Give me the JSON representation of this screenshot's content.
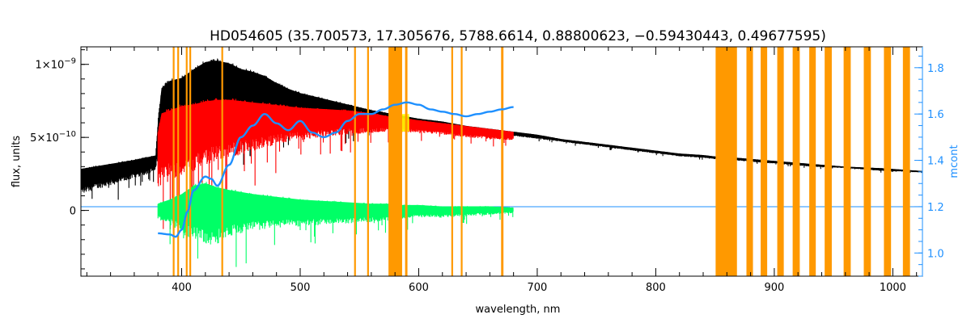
{
  "chart_data": {
    "type": "line",
    "title": "HD054605   (35.700573, 17.305676, 5788.6614, 0.88800623, −0.59430443, 0.49677595)",
    "xlabel": "wavelength, nm",
    "ylabel": "flux, units",
    "y2label": "mcont",
    "xlim": [
      315,
      1025
    ],
    "ylim": [
      -4.5e-10,
      1.12e-09
    ],
    "y2lim": [
      0.9,
      1.89
    ],
    "x_ticks": [
      400,
      500,
      600,
      700,
      800,
      900,
      1000
    ],
    "y_ticks": [
      {
        "value": 0,
        "label": "0"
      },
      {
        "value": 5e-10,
        "label": "5×10",
        "exp": "−10"
      },
      {
        "value": 1e-09,
        "label": "1×10",
        "exp": "−9"
      }
    ],
    "y2_ticks": [
      1.0,
      1.2,
      1.4,
      1.6,
      1.8
    ],
    "grid": false,
    "colors": {
      "observed": "#000000",
      "model": "#ff0000",
      "residual": "#00ff66",
      "mcont": "#1e90ff",
      "mask": "#ff9900",
      "highlight": "#ffff00"
    },
    "masks": [
      {
        "x0": 392.5,
        "x1": 394.0
      },
      {
        "x0": 396.3,
        "x1": 397.8
      },
      {
        "x0": 403.5,
        "x1": 405.0
      },
      {
        "x0": 406.5,
        "x1": 408.0
      },
      {
        "x0": 433.5,
        "x1": 435.0
      },
      {
        "x0": 545.5,
        "x1": 547.0
      },
      {
        "x0": 556.5,
        "x1": 558.0
      },
      {
        "x0": 574.5,
        "x1": 586.0
      },
      {
        "x0": 588.5,
        "x1": 590.5
      },
      {
        "x0": 627.5,
        "x1": 629.0
      },
      {
        "x0": 635.5,
        "x1": 637.0
      },
      {
        "x0": 669.5,
        "x1": 671.5
      },
      {
        "x0": 850.5,
        "x1": 868.5
      },
      {
        "x0": 876.5,
        "x1": 882.0
      },
      {
        "x0": 888.5,
        "x1": 894.0
      },
      {
        "x0": 902.5,
        "x1": 908.0
      },
      {
        "x0": 915.5,
        "x1": 921.5
      },
      {
        "x0": 929.5,
        "x1": 935.0
      },
      {
        "x0": 942.5,
        "x1": 948.5
      },
      {
        "x0": 958.5,
        "x1": 964.5
      },
      {
        "x0": 975.5,
        "x1": 981.5
      },
      {
        "x0": 992.5,
        "x1": 998.5
      },
      {
        "x0": 1008.5,
        "x1": 1014.5
      }
    ],
    "series": [
      {
        "key": "observed",
        "x": [
          315,
          330,
          345,
          360,
          372,
          378,
          380,
          383,
          390,
          400,
          410,
          420,
          430,
          440,
          450,
          460,
          470,
          480,
          490,
          500,
          520,
          540,
          560,
          580,
          600,
          620,
          640,
          660,
          680,
          700,
          720,
          740,
          760,
          780,
          800,
          820,
          840,
          850,
          870,
          900,
          930,
          960,
          990,
          1025
        ],
        "y_upper": [
          2.9e-10,
          3.1e-10,
          3.3e-10,
          3.5e-10,
          3.7e-10,
          3.8e-10,
          6.2e-10,
          8.5e-10,
          9e-10,
          9.2e-10,
          9.8e-10,
          1.03e-09,
          1.04e-09,
          1.02e-09,
          9.8e-10,
          9.6e-10,
          9.3e-10,
          8.8e-10,
          8.4e-10,
          8.1e-10,
          7.7e-10,
          7.3e-10,
          6.9e-10,
          6.6e-10,
          6.3e-10,
          6.1e-10,
          5.8e-10,
          5.6e-10,
          5.4e-10,
          5.2e-10,
          4.9e-10,
          4.7e-10,
          4.5e-10,
          4.3e-10,
          4.1e-10,
          3.9e-10,
          3.8e-10,
          3.7e-10,
          3.6e-10,
          3.4e-10,
          3.2e-10,
          3e-10,
          2.9e-10,
          2.7e-10
        ],
        "y_lower": [
          1.1e-10,
          1.5e-10,
          1.8e-10,
          2.2e-10,
          2.5e-10,
          2.7e-10,
          3.6e-10,
          4.4e-10,
          4.8e-10,
          5e-10,
          5.2e-10,
          5.6e-10,
          5.8e-10,
          5.9e-10,
          6e-10,
          6.1e-10,
          6.2e-10,
          6.2e-10,
          6.1e-10,
          6e-10,
          5.9e-10,
          5.8e-10,
          5.8e-10,
          5.8e-10,
          5.7e-10,
          5.6e-10,
          5.4e-10,
          5.2e-10,
          5.1e-10,
          4.9e-10,
          4.7e-10,
          4.5e-10,
          4.3e-10,
          4.1e-10,
          3.9e-10,
          3.7e-10,
          3.6e-10,
          3.5e-10,
          3.4e-10,
          3.2e-10,
          3e-10,
          2.9e-10,
          2.7e-10,
          2.6e-10
        ]
      },
      {
        "key": "model",
        "x": [
          380,
          383,
          390,
          400,
          410,
          420,
          430,
          440,
          450,
          460,
          470,
          480,
          490,
          500,
          520,
          540,
          560,
          580,
          600,
          620,
          640,
          660,
          680
        ],
        "y_upper": [
          5.5e-10,
          6.8e-10,
          7e-10,
          7.3e-10,
          7.4e-10,
          7.6e-10,
          7.7e-10,
          7.7e-10,
          7.6e-10,
          7.5e-10,
          7.4e-10,
          7.3e-10,
          7.2e-10,
          7.1e-10,
          7e-10,
          6.9e-10,
          6.7e-10,
          6.4e-10,
          6.2e-10,
          6e-10,
          5.8e-10,
          5.6e-10,
          5.4e-10
        ],
        "y_lower": [
          1.5e-10,
          1.7e-10,
          2e-10,
          2.3e-10,
          2.7e-10,
          3.1e-10,
          3.4e-10,
          3.6e-10,
          3.8e-10,
          4e-10,
          4.3e-10,
          4.5e-10,
          4.7e-10,
          4.8e-10,
          5e-10,
          5.2e-10,
          5.3e-10,
          5.4e-10,
          5.3e-10,
          5.2e-10,
          5e-10,
          4.9e-10,
          4.8e-10
        ]
      },
      {
        "key": "residual",
        "x": [
          380,
          390,
          400,
          410,
          420,
          430,
          440,
          460,
          480,
          500,
          520,
          540,
          560,
          575,
          585,
          600,
          620,
          640,
          660,
          680
        ],
        "y_upper": [
          5e-11,
          8e-11,
          1.2e-10,
          1.8e-10,
          2e-10,
          1.7e-10,
          1.5e-10,
          1.2e-10,
          1e-10,
          8e-11,
          7e-11,
          6e-11,
          5e-11,
          5e-11,
          4e-11,
          4e-11,
          3e-11,
          3e-11,
          3e-11,
          2e-11
        ],
        "y_lower": [
          -6e-11,
          -1e-10,
          -1.6e-10,
          -2e-10,
          -2.5e-10,
          -2.3e-10,
          -1.8e-10,
          -1.4e-10,
          -1.2e-10,
          -1.1e-10,
          -1e-10,
          -9e-11,
          -8e-11,
          -7e-11,
          -6e-11,
          -5e-11,
          -5e-11,
          -4e-11,
          -3e-11,
          -2e-11
        ]
      },
      {
        "key": "mcont",
        "axis": "right",
        "x": [
          380,
          390,
          395,
          400,
          405,
          410,
          420,
          425,
          430,
          440,
          450,
          460,
          470,
          480,
          490,
          500,
          510,
          520,
          530,
          540,
          550,
          560,
          570,
          580,
          590,
          600,
          610,
          620,
          630,
          640,
          650,
          660,
          670,
          680
        ],
        "y": [
          1.085,
          1.08,
          1.07,
          1.1,
          1.18,
          1.27,
          1.33,
          1.32,
          1.29,
          1.38,
          1.5,
          1.55,
          1.6,
          1.56,
          1.53,
          1.57,
          1.52,
          1.5,
          1.52,
          1.57,
          1.6,
          1.6,
          1.62,
          1.64,
          1.65,
          1.64,
          1.62,
          1.61,
          1.6,
          1.59,
          1.6,
          1.61,
          1.62,
          1.63
        ]
      }
    ],
    "baseline": {
      "axis": "right",
      "y": 1.2
    },
    "highlight_region": {
      "x0": 578,
      "x1": 592
    }
  }
}
